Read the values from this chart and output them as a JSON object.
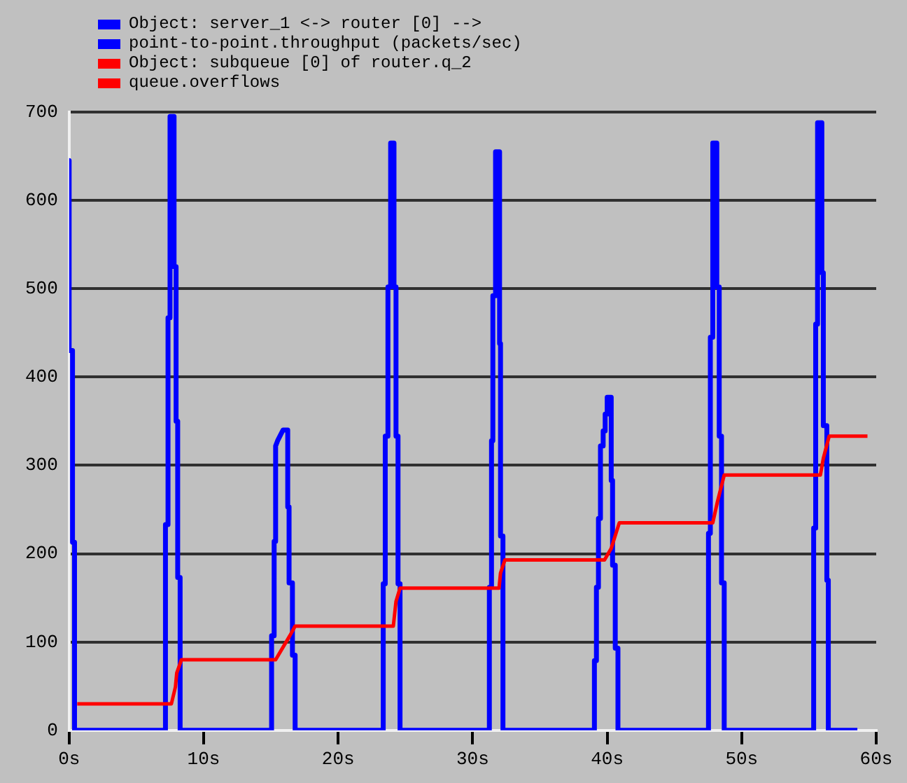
{
  "chart_data": {
    "type": "line",
    "xlim": [
      0,
      60
    ],
    "ylim": [
      0,
      700
    ],
    "xticks": [
      {
        "value": 0,
        "label": "0s"
      },
      {
        "value": 10,
        "label": "10s"
      },
      {
        "value": 20,
        "label": "20s"
      },
      {
        "value": 30,
        "label": "30s"
      },
      {
        "value": 40,
        "label": "40s"
      },
      {
        "value": 50,
        "label": "50s"
      },
      {
        "value": 60,
        "label": "60s"
      }
    ],
    "yticks": [
      0,
      100,
      200,
      300,
      400,
      500,
      600,
      700
    ],
    "grid": "y",
    "legend": "top left",
    "marker": "none",
    "line_style": "solid",
    "series": [
      {
        "name": "Object: server_1 <-> router [0] -->\npoint-to-point.throughput (packets/sec)",
        "color": "#0000ff",
        "x": [
          0,
          0,
          0.25,
          0.25,
          0.4,
          0.4,
          7.16,
          7.16,
          7.35,
          7.35,
          7.5,
          7.5,
          7.8,
          7.8,
          7.95,
          7.95,
          8.07,
          8.07,
          8.25,
          8.25,
          15.05,
          15.05,
          15.24,
          15.24,
          15.35,
          15.35,
          15.5,
          15.9,
          16.25,
          16.25,
          16.35,
          16.35,
          16.6,
          16.6,
          16.8,
          16.8,
          23.35,
          23.35,
          23.5,
          23.5,
          23.7,
          23.7,
          23.9,
          23.9,
          24.15,
          24.15,
          24.3,
          24.3,
          24.45,
          24.45,
          24.6,
          24.6,
          31.24,
          31.24,
          31.4,
          31.4,
          31.5,
          31.5,
          31.7,
          31.7,
          32.0,
          32.0,
          32.07,
          32.07,
          32.25,
          32.25,
          39.05,
          39.05,
          39.2,
          39.2,
          39.35,
          39.35,
          39.5,
          39.5,
          39.7,
          39.7,
          39.85,
          39.85,
          40.0,
          40.0,
          40.3,
          40.3,
          40.4,
          40.4,
          40.6,
          40.6,
          40.8,
          40.8,
          47.53,
          47.53,
          47.67,
          47.67,
          47.85,
          47.85,
          48.15,
          48.15,
          48.33,
          48.33,
          48.5,
          48.5,
          48.7,
          48.7,
          55.35,
          55.35,
          55.5,
          55.5,
          55.64,
          55.64,
          55.96,
          55.96,
          56.07,
          56.07,
          56.33,
          56.33,
          56.44,
          56.44,
          58.6
        ],
        "values": [
          645,
          430,
          430,
          213,
          213,
          0,
          0,
          233,
          233,
          467,
          467,
          695,
          695,
          525,
          525,
          350,
          350,
          173,
          173,
          0,
          0,
          107,
          107,
          214,
          214,
          322,
          328,
          340,
          340,
          253,
          253,
          167,
          167,
          85,
          85,
          0,
          0,
          166,
          166,
          333,
          333,
          502,
          502,
          665,
          665,
          502,
          502,
          333,
          333,
          166,
          166,
          0,
          0,
          162,
          162,
          328,
          328,
          492,
          492,
          655,
          655,
          438,
          438,
          220,
          220,
          0,
          0,
          79,
          79,
          162,
          162,
          240,
          240,
          322,
          322,
          339,
          339,
          358,
          358,
          377,
          377,
          283,
          283,
          187,
          187,
          93,
          93,
          0,
          0,
          223,
          223,
          445,
          445,
          665,
          665,
          502,
          502,
          333,
          333,
          167,
          167,
          0,
          0,
          229,
          229,
          460,
          460,
          688,
          688,
          518,
          518,
          345,
          345,
          170,
          170,
          0,
          0
        ]
      },
      {
        "name": "Object: subqueue [0] of router.q_2\nqueue.overflows",
        "color": "#ff0000",
        "x": [
          0.6,
          7.6,
          7.9,
          8.0,
          8.35,
          15.35,
          16.4,
          16.8,
          24.1,
          24.3,
          24.6,
          31.96,
          32.07,
          32.4,
          39.8,
          40.3,
          40.9,
          47.85,
          48.2,
          48.7,
          55.85,
          56.07,
          56.5,
          59.35
        ],
        "values": [
          30,
          30,
          49,
          65,
          80,
          80,
          107,
          118,
          118,
          146,
          161,
          161,
          178,
          193,
          193,
          206,
          235,
          235,
          259,
          289,
          289,
          308,
          333,
          333
        ]
      }
    ]
  }
}
